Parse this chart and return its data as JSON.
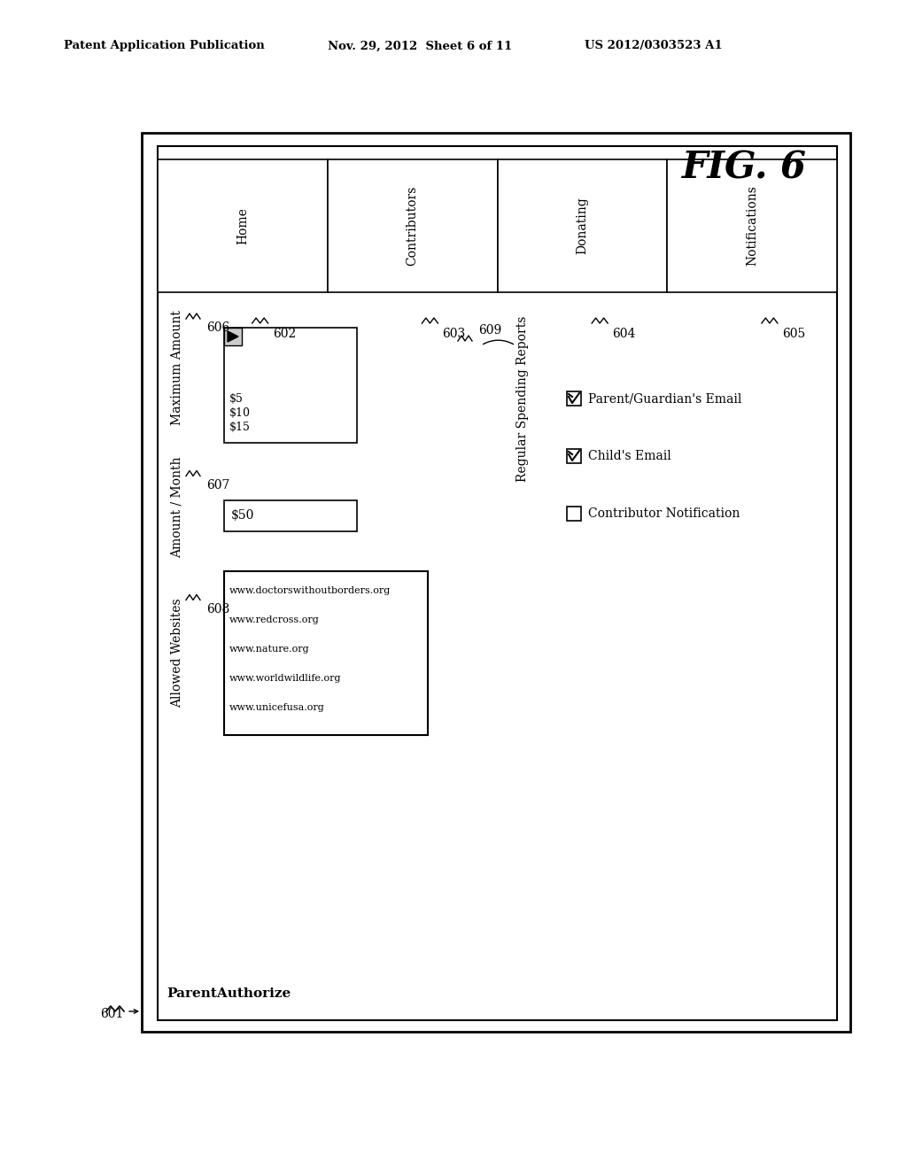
{
  "fig_label": "FIG. 6",
  "header_left": "Patent Application Publication",
  "header_center": "Nov. 29, 2012  Sheet 6 of 11",
  "header_right": "US 2012/0303523 A1",
  "app_title": "ParentAuthorize",
  "tabs": [
    "Home",
    "Contributors",
    "Donating",
    "Notifications"
  ],
  "tab_numbers": [
    "602",
    "603",
    "604",
    "605"
  ],
  "outer_box_label": "601",
  "max_amount_label": "Maximum Amount",
  "max_amount_num": "606",
  "amount_month_label": "Amount / Month",
  "amount_month_num": "607",
  "allowed_websites_label": "Allowed Websites",
  "allowed_websites_num": "608",
  "dropdown_values": [
    "$5",
    "$10",
    "$15"
  ],
  "input_value": "$50",
  "websites": [
    "www.doctorswithoutborders.org",
    "www.redcross.org",
    "www.nature.org",
    "www.worldwildlife.org",
    "www.unicefusa.org"
  ],
  "notifications_label": "Regular Spending Reports",
  "notifications_num": "609",
  "checkboxes": [
    {
      "checked": true,
      "label": "Parent/Guardian's Email"
    },
    {
      "checked": true,
      "label": "Child's Email"
    },
    {
      "checked": false,
      "label": "Contributor Notification"
    }
  ],
  "bg_color": "#ffffff"
}
